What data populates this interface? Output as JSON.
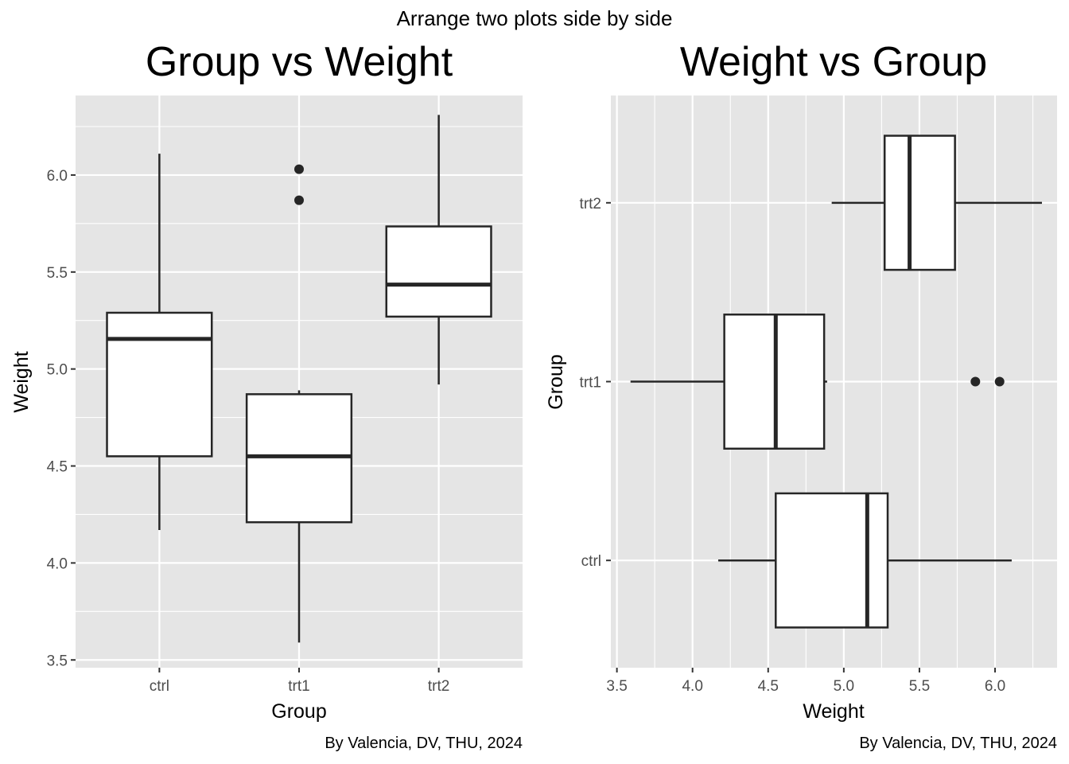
{
  "page_title": "Arrange two plots side by side",
  "chart_data": [
    {
      "type": "boxplot",
      "orientation": "vertical",
      "title": "Group vs Weight",
      "xlabel": "Group",
      "ylabel": "Weight",
      "caption": "By Valencia, DV, THU, 2024",
      "categories": [
        "ctrl",
        "trt1",
        "trt2"
      ],
      "ylim": [
        3.46,
        6.41
      ],
      "ticks": [
        3.5,
        4.0,
        4.5,
        5.0,
        5.5,
        6.0
      ],
      "tick_labels": [
        "3.5",
        "4.0",
        "4.5",
        "5.0",
        "5.5",
        "6.0"
      ],
      "minor_ticks": [
        3.75,
        4.25,
        4.75,
        5.25,
        5.75,
        6.25
      ],
      "boxes": [
        {
          "group": "ctrl",
          "min": 4.17,
          "q1": 4.55,
          "median": 5.155,
          "q3": 5.29,
          "max": 6.11,
          "outliers": []
        },
        {
          "group": "trt1",
          "min": 3.59,
          "q1": 4.21,
          "median": 4.55,
          "q3": 4.87,
          "max": 4.89,
          "outliers": [
            5.87,
            6.03
          ]
        },
        {
          "group": "trt2",
          "min": 4.92,
          "q1": 5.27,
          "median": 5.435,
          "q3": 5.735,
          "max": 6.31,
          "outliers": []
        }
      ]
    },
    {
      "type": "boxplot",
      "orientation": "horizontal",
      "title": "Weight vs Group",
      "xlabel": "Weight",
      "ylabel": "Group",
      "caption": "By Valencia, DV, THU, 2024",
      "categories": [
        "ctrl",
        "trt1",
        "trt2"
      ],
      "xlim": [
        3.46,
        6.41
      ],
      "ticks": [
        3.5,
        4.0,
        4.5,
        5.0,
        5.5,
        6.0
      ],
      "tick_labels": [
        "3.5",
        "4.0",
        "4.5",
        "5.0",
        "5.5",
        "6.0"
      ],
      "minor_ticks": [
        3.75,
        4.25,
        4.75,
        5.25,
        5.75,
        6.25
      ],
      "boxes": [
        {
          "group": "ctrl",
          "min": 4.17,
          "q1": 4.55,
          "median": 5.155,
          "q3": 5.29,
          "max": 6.11,
          "outliers": []
        },
        {
          "group": "trt1",
          "min": 3.59,
          "q1": 4.21,
          "median": 4.55,
          "q3": 4.87,
          "max": 4.89,
          "outliers": [
            5.87,
            6.03
          ]
        },
        {
          "group": "trt2",
          "min": 4.92,
          "q1": 5.27,
          "median": 5.435,
          "q3": 5.735,
          "max": 6.31,
          "outliers": []
        }
      ]
    }
  ]
}
